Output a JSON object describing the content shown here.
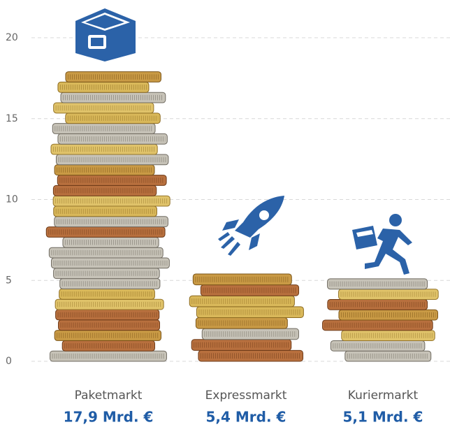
{
  "chart_data": {
    "type": "bar",
    "categories": [
      "Paketmarkt",
      "Expressmarkt",
      "Kuriermarkt"
    ],
    "values": [
      17.9,
      5.4,
      5.1
    ],
    "value_labels": [
      "17,9 Mrd. €",
      "5,4 Mrd. €",
      "5,1 Mrd. €"
    ],
    "ylim": [
      0,
      20
    ],
    "yticks": [
      0,
      5,
      10,
      15,
      20
    ],
    "grid": true
  }
}
